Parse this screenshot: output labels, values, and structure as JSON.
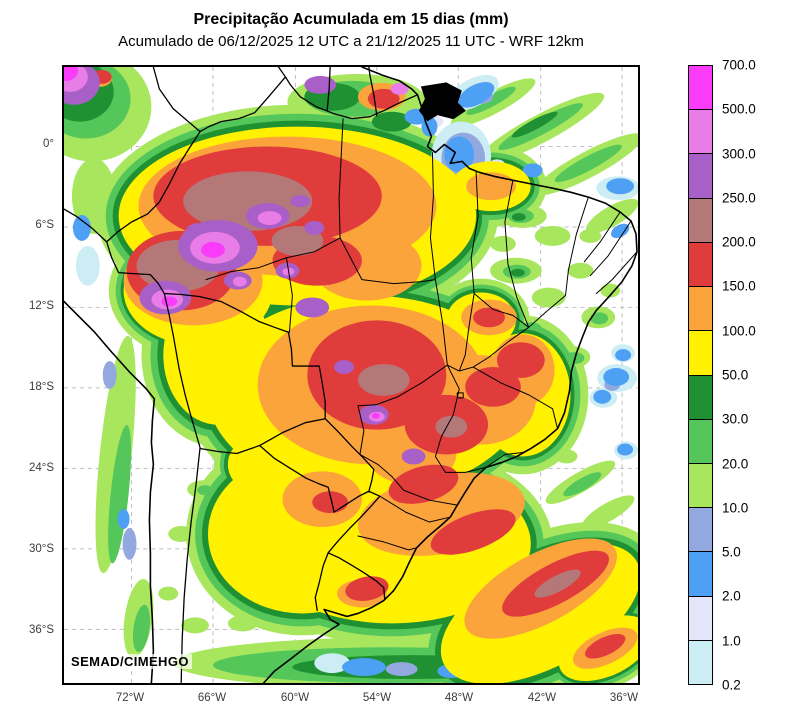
{
  "header": {
    "title": "Precipitação Acumulada em 15 dias (mm)",
    "subtitle": "Acumulado de 06/12/2025 12 UTC a 21/12/2025 11 UTC - WRF 12km"
  },
  "map": {
    "watermark": "SEMAD/CIMEHGO",
    "lat_ticks": [
      "0°",
      "6°S",
      "12°S",
      "18°S",
      "24°S",
      "30°S",
      "36°S"
    ],
    "lon_ticks": [
      "72°W",
      "66°W",
      "60°W",
      "54°W",
      "48°W",
      "42°W",
      "36°W"
    ]
  },
  "legend": {
    "labels": [
      "700,0",
      "500,0",
      "300,0",
      "250,0",
      "200,0",
      "150,0",
      "100,0",
      "50,0",
      "30,0",
      "20,0",
      "10,0",
      "5,0",
      "2,0",
      "1,0",
      "0,2"
    ],
    "labels_display": [
      "700.0",
      "500.0",
      "300.0",
      "250.0",
      "200.0",
      "150.0",
      "100.0",
      "50.0",
      "30.0",
      "20.0",
      "10.0",
      "5.0",
      "2.0",
      "1.0",
      "0.2"
    ],
    "colors": [
      "#FA3CFA",
      "#E87DE8",
      "#A85FC8",
      "#B47878",
      "#E03C3C",
      "#FCA43C",
      "#FFF100",
      "#1F9133",
      "#55C75A",
      "#A7E65D",
      "#94A8E0",
      "#4EA0F5",
      "#E4E4FB",
      "#CDEDF4"
    ]
  },
  "chart_data": {
    "type": "heatmap",
    "title": "Precipitação Acumulada em 15 dias (mm)",
    "subtitle": "Acumulado de 06/12/2025 12 UTC a 21/12/2025 11 UTC - WRF 12km",
    "units": "mm",
    "x_ticks": [
      "72°W",
      "66°W",
      "60°W",
      "54°W",
      "48°W",
      "42°W",
      "36°W"
    ],
    "y_ticks": [
      "0°",
      "6°S",
      "12°S",
      "18°S",
      "24°S",
      "30°S",
      "36°S"
    ],
    "legend_levels_mm": [
      0.2,
      1,
      2,
      5,
      10,
      20,
      30,
      50,
      100,
      150,
      200,
      250,
      300,
      500,
      700
    ],
    "legend_colors_low_to_high": [
      "#CDEDF4",
      "#E4E4FB",
      "#4EA0F5",
      "#94A8E0",
      "#A7E65D",
      "#55C75A",
      "#1F9133",
      "#FFF100",
      "#FCA43C",
      "#E03C3C",
      "#B47878",
      "#A85FC8",
      "#E87DE8",
      "#FA3CFA"
    ],
    "field_summary": "Maximum accumulation (300-700 mm, purple/magenta) over western Amazon; widespread 100-250 mm (orange/red) across central Brazil and the Southeast; 50-100 mm (yellow) over most of interior Brazil and adjacent South Atlantic; light totals (0.2-30 mm, blues/greens) over Northeast Brazil, the Andes and far South."
  }
}
